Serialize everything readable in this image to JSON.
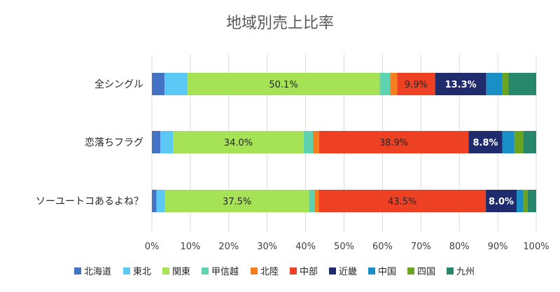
{
  "chart_data": {
    "type": "bar",
    "orientation": "horizontal",
    "stacked": true,
    "percent": true,
    "title": "地域別売上比率",
    "categories": [
      "全シングル",
      "恋落ちフラグ",
      "ソーユートコあるよね？"
    ],
    "xlim": [
      0,
      100
    ],
    "x_ticks": [
      "0%",
      "10%",
      "20%",
      "30%",
      "40%",
      "50%",
      "60%",
      "70%",
      "80%",
      "90%",
      "100%"
    ],
    "grid": true,
    "legend_position": "bottom",
    "series": [
      {
        "name": "北海道",
        "color": "#4472C4",
        "values": [
          3.3,
          2.2,
          1.2
        ],
        "labels": [
          "",
          "",
          ""
        ]
      },
      {
        "name": "東北",
        "color": "#5BC8F5",
        "values": [
          5.9,
          3.3,
          2.2
        ],
        "labels": [
          "",
          "",
          ""
        ]
      },
      {
        "name": "関東",
        "color": "#A5E255",
        "values": [
          50.1,
          34.0,
          37.5
        ],
        "labels": [
          "50.1%",
          "34.0%",
          "37.5%"
        ]
      },
      {
        "name": "甲信越",
        "color": "#5FD3B0",
        "values": [
          2.7,
          2.4,
          1.4
        ],
        "labels": [
          "",
          "",
          ""
        ]
      },
      {
        "name": "北陸",
        "color": "#F57F20",
        "values": [
          1.8,
          1.6,
          1.1
        ],
        "labels": [
          "",
          "",
          ""
        ]
      },
      {
        "name": "中部",
        "color": "#EE4123",
        "values": [
          9.9,
          38.9,
          43.5
        ],
        "labels": [
          "9.9%",
          "38.9%",
          "43.5%"
        ]
      },
      {
        "name": "近畿",
        "color": "#1F2B6D",
        "values": [
          13.3,
          8.8,
          8.0
        ],
        "labels": [
          "13.3%",
          "8.8%",
          "8.0%"
        ]
      },
      {
        "name": "中国",
        "color": "#1A8FC7",
        "values": [
          4.2,
          3.1,
          1.8
        ],
        "labels": [
          "",
          "",
          ""
        ]
      },
      {
        "name": "四国",
        "color": "#6AA421",
        "values": [
          1.6,
          2.3,
          1.1
        ],
        "labels": [
          "",
          "",
          ""
        ]
      },
      {
        "name": "九州",
        "color": "#27876A",
        "values": [
          7.2,
          3.4,
          2.2
        ],
        "labels": [
          "",
          "",
          ""
        ]
      }
    ]
  }
}
